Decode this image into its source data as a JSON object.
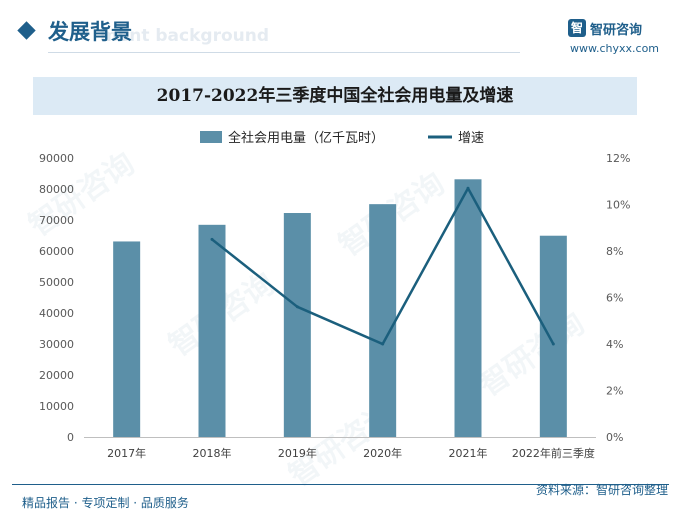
{
  "header": {
    "title": "发展背景",
    "subtitle_ghost": "ment background"
  },
  "logo": {
    "mark": "智",
    "name": "智研咨询",
    "url": "www.chyxx.com"
  },
  "footer": {
    "left_text": "精品报告 · 专项定制 · 品质服务",
    "source_text": "资料来源：智研咨询整理"
  },
  "watermark_text": "智研咨询",
  "colors": {
    "brand": "#1f5f8b",
    "bar": "#5b8fa8",
    "line": "#1b5f7d"
  },
  "chart_data": {
    "type": "bar",
    "title": "2017-2022年三季度中国全社会用电量及增速",
    "categories": [
      "2017年",
      "2018年",
      "2019年",
      "2020年",
      "2021年",
      "2022年前三季度"
    ],
    "series": [
      {
        "name": "全社会用电量（亿千瓦时）",
        "type": "bar",
        "axis": "left",
        "values": [
          63077,
          68449,
          72255,
          75110,
          83128,
          64931
        ]
      },
      {
        "name": "增速",
        "type": "line",
        "axis": "right",
        "unit": "%",
        "values": [
          null,
          8.5,
          5.6,
          4.0,
          10.7,
          4.0
        ]
      }
    ],
    "left_axis": {
      "min": 0,
      "max": 90000,
      "ticks": [
        "0",
        "10000",
        "20000",
        "30000",
        "40000",
        "50000",
        "60000",
        "70000",
        "80000",
        "90000"
      ]
    },
    "right_axis": {
      "min": 0,
      "max": 12,
      "ticks": [
        "0%",
        "2%",
        "4%",
        "6%",
        "8%",
        "10%",
        "12%"
      ]
    },
    "legend_position": "top-center",
    "grid": false
  }
}
